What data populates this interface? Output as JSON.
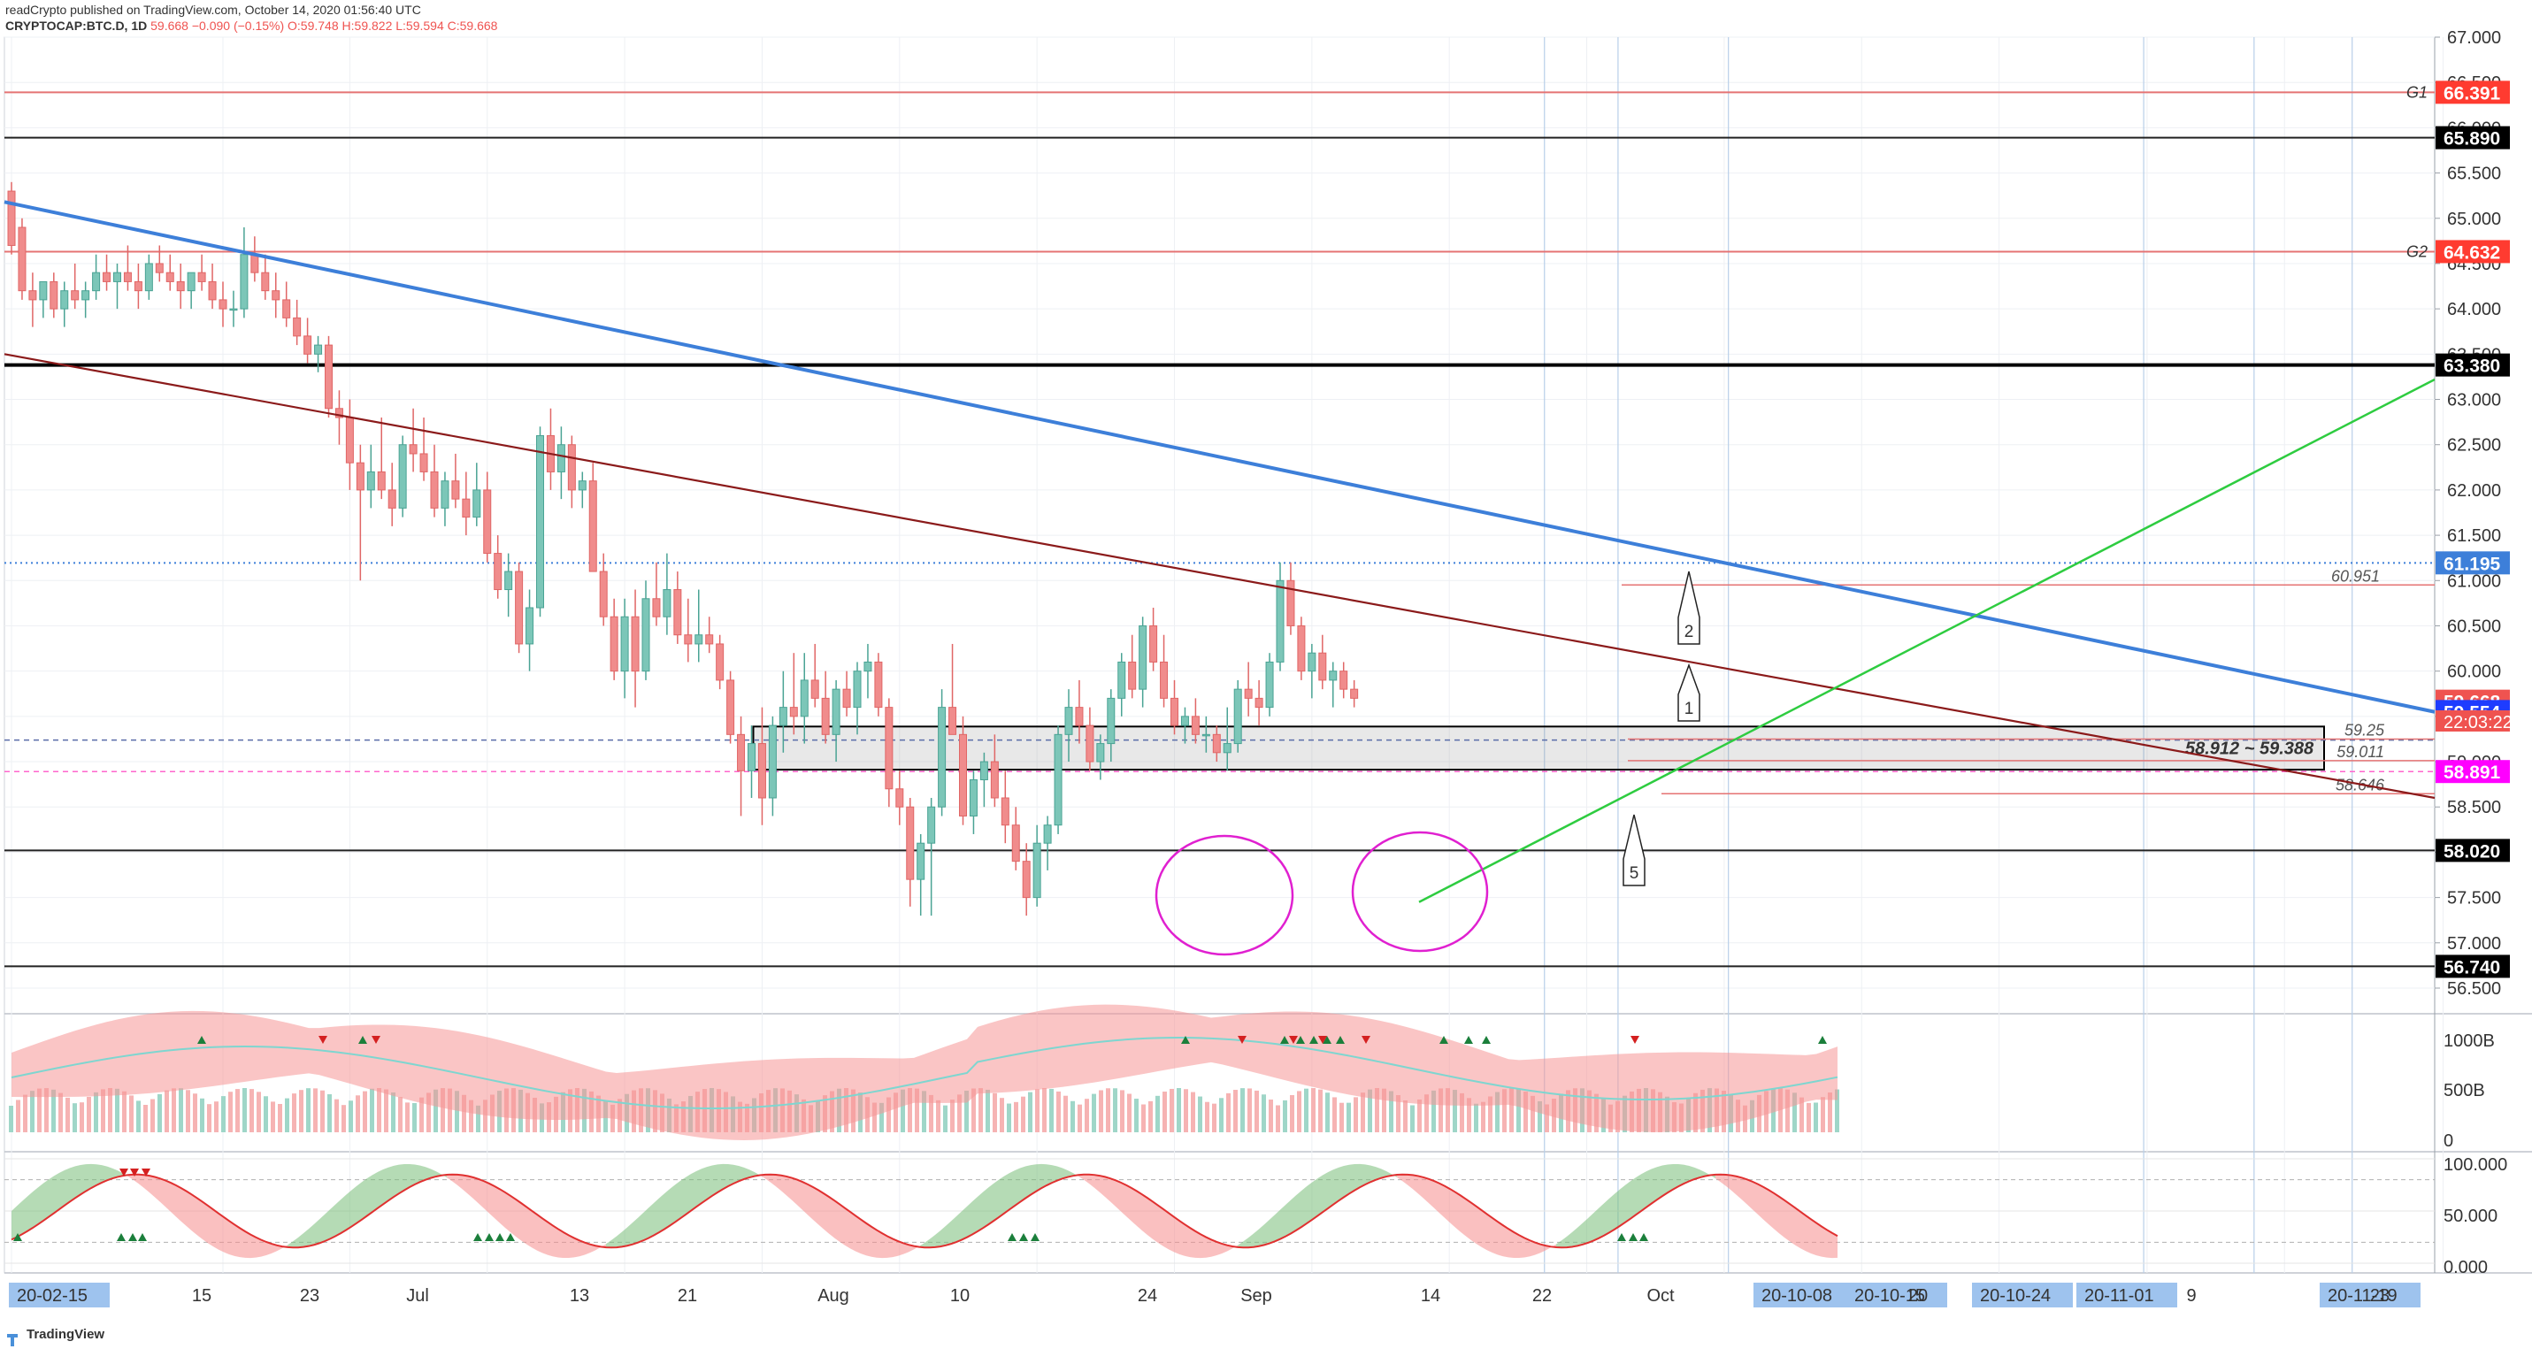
{
  "header": {
    "publish_line": "readCrypto published on TradingView.com, October 14, 2020 01:56:40 UTC",
    "symbol": "CRYPTOCAP:BTC.D, 1D",
    "last": "59.668",
    "change": "−0.090 (−0.15%)",
    "open": "O:59.748",
    "high": "H:59.822",
    "low": "L:59.594",
    "close": "C:59.668"
  },
  "footer": {
    "brand": "TradingView"
  },
  "colors": {
    "up": "#26a69a",
    "down": "#ef5350",
    "up_fill": "#a5d6a7",
    "down_fill": "#f5a3a3",
    "blue_trend": "#3d7fd9",
    "darkred_trend": "#8b1a1a",
    "green_trend": "#2ecc40",
    "magenta": "#e020d0",
    "hline_red": "#e57373",
    "grid": "#eef0f4",
    "axis_text": "#333333"
  },
  "chart_data": {
    "type": "candlestick",
    "price_axis": {
      "range": [
        56.5,
        67.0
      ],
      "ticks": [
        "67.000",
        "66.500",
        "66.000",
        "65.500",
        "65.000",
        "64.500",
        "64.000",
        "63.500",
        "63.000",
        "62.500",
        "62.000",
        "61.500",
        "61.000",
        "60.500",
        "60.000",
        "59.500",
        "59.000",
        "58.500",
        "58.000",
        "57.500",
        "57.000",
        "56.500"
      ]
    },
    "time_axis": {
      "ticks": [
        {
          "label": "20-02-15",
          "highlight": true
        },
        {
          "label": "15",
          "highlight": false
        },
        {
          "label": "23",
          "highlight": false
        },
        {
          "label": "Jul",
          "highlight": false
        },
        {
          "label": "13",
          "highlight": false
        },
        {
          "label": "21",
          "highlight": false
        },
        {
          "label": "Aug",
          "highlight": false
        },
        {
          "label": "10",
          "highlight": false
        },
        {
          "label": "24",
          "highlight": false
        },
        {
          "label": "Sep",
          "highlight": false
        },
        {
          "label": "14",
          "highlight": false
        },
        {
          "label": "22",
          "highlight": false
        },
        {
          "label": "Oct",
          "highlight": false
        },
        {
          "label": "20-10-08",
          "highlight": true
        },
        {
          "label": "20-10-15",
          "highlight": true
        },
        {
          "label": "20",
          "highlight": false
        },
        {
          "label": "20-10-24",
          "highlight": true
        },
        {
          "label": "20-11-01",
          "highlight": true
        },
        {
          "label": "9",
          "highlight": false
        },
        {
          "label": "20-11-19",
          "highlight": true
        },
        {
          "label": "23",
          "highlight": false
        }
      ]
    },
    "candles_ohlc": [
      [
        65.3,
        65.4,
        64.6,
        64.7
      ],
      [
        64.9,
        65.0,
        64.1,
        64.2
      ],
      [
        64.2,
        64.4,
        63.8,
        64.1
      ],
      [
        64.1,
        64.3,
        63.9,
        64.3
      ],
      [
        64.3,
        64.4,
        63.9,
        64.0
      ],
      [
        64.0,
        64.3,
        63.8,
        64.2
      ],
      [
        64.2,
        64.5,
        64.0,
        64.1
      ],
      [
        64.1,
        64.3,
        63.9,
        64.2
      ],
      [
        64.2,
        64.6,
        64.1,
        64.4
      ],
      [
        64.4,
        64.6,
        64.2,
        64.3
      ],
      [
        64.3,
        64.5,
        64.0,
        64.4
      ],
      [
        64.4,
        64.7,
        64.2,
        64.3
      ],
      [
        64.3,
        64.5,
        64.0,
        64.2
      ],
      [
        64.2,
        64.6,
        64.1,
        64.5
      ],
      [
        64.5,
        64.7,
        64.3,
        64.4
      ],
      [
        64.4,
        64.6,
        64.2,
        64.3
      ],
      [
        64.3,
        64.5,
        64.0,
        64.2
      ],
      [
        64.2,
        64.4,
        64.0,
        64.4
      ],
      [
        64.4,
        64.6,
        64.2,
        64.3
      ],
      [
        64.3,
        64.5,
        64.0,
        64.1
      ],
      [
        64.1,
        64.3,
        63.8,
        64.0
      ],
      [
        64.0,
        64.2,
        63.8,
        64.0
      ],
      [
        64.0,
        64.9,
        63.9,
        64.6
      ],
      [
        64.6,
        64.8,
        64.3,
        64.4
      ],
      [
        64.4,
        64.6,
        64.1,
        64.2
      ],
      [
        64.2,
        64.4,
        63.9,
        64.1
      ],
      [
        64.1,
        64.3,
        63.8,
        63.9
      ],
      [
        63.9,
        64.1,
        63.6,
        63.7
      ],
      [
        63.7,
        63.9,
        63.4,
        63.5
      ],
      [
        63.5,
        63.7,
        63.3,
        63.6
      ],
      [
        63.6,
        63.7,
        62.8,
        62.9
      ],
      [
        62.9,
        63.1,
        62.5,
        62.8
      ],
      [
        62.8,
        63.0,
        62.0,
        62.3
      ],
      [
        62.3,
        62.5,
        61.0,
        62.0
      ],
      [
        62.0,
        62.5,
        61.8,
        62.2
      ],
      [
        62.2,
        62.8,
        61.9,
        62.0
      ],
      [
        62.0,
        62.3,
        61.6,
        61.8
      ],
      [
        61.8,
        62.6,
        61.7,
        62.5
      ],
      [
        62.5,
        62.9,
        62.2,
        62.4
      ],
      [
        62.4,
        62.8,
        62.1,
        62.2
      ],
      [
        62.2,
        62.5,
        61.7,
        61.8
      ],
      [
        61.8,
        62.2,
        61.6,
        62.1
      ],
      [
        62.1,
        62.4,
        61.8,
        61.9
      ],
      [
        61.9,
        62.2,
        61.5,
        61.7
      ],
      [
        61.7,
        62.3,
        61.6,
        62.0
      ],
      [
        62.0,
        62.2,
        61.2,
        61.3
      ],
      [
        61.3,
        61.5,
        60.8,
        60.9
      ],
      [
        60.9,
        61.3,
        60.6,
        61.1
      ],
      [
        61.1,
        61.2,
        60.2,
        60.3
      ],
      [
        60.3,
        60.9,
        60.0,
        60.7
      ],
      [
        60.7,
        62.7,
        60.6,
        62.6
      ],
      [
        62.6,
        62.9,
        62.0,
        62.2
      ],
      [
        62.2,
        62.7,
        61.9,
        62.5
      ],
      [
        62.5,
        62.6,
        61.8,
        62.0
      ],
      [
        62.0,
        62.2,
        61.8,
        62.1
      ],
      [
        62.1,
        62.3,
        61.1,
        61.1
      ],
      [
        61.1,
        61.3,
        60.5,
        60.6
      ],
      [
        60.6,
        60.8,
        59.9,
        60.0
      ],
      [
        60.0,
        60.8,
        59.7,
        60.6
      ],
      [
        60.6,
        60.9,
        59.6,
        60.0
      ],
      [
        60.0,
        61.0,
        59.9,
        60.8
      ],
      [
        60.8,
        61.2,
        60.5,
        60.6
      ],
      [
        60.6,
        61.3,
        60.4,
        60.9
      ],
      [
        60.9,
        61.1,
        60.3,
        60.4
      ],
      [
        60.4,
        60.8,
        60.1,
        60.3
      ],
      [
        60.3,
        60.9,
        60.1,
        60.4
      ],
      [
        60.4,
        60.6,
        60.2,
        60.3
      ],
      [
        60.3,
        60.4,
        59.8,
        59.9
      ],
      [
        59.9,
        60.0,
        59.2,
        59.3
      ],
      [
        59.3,
        59.5,
        58.4,
        58.9
      ],
      [
        58.9,
        59.4,
        58.6,
        59.2
      ],
      [
        59.2,
        59.6,
        58.3,
        58.6
      ],
      [
        58.6,
        59.5,
        58.4,
        59.4
      ],
      [
        59.4,
        60.0,
        59.1,
        59.6
      ],
      [
        59.6,
        60.2,
        59.3,
        59.5
      ],
      [
        59.5,
        60.2,
        59.2,
        59.9
      ],
      [
        59.9,
        60.3,
        59.6,
        59.7
      ],
      [
        59.7,
        60.0,
        59.2,
        59.3
      ],
      [
        59.3,
        59.9,
        59.0,
        59.8
      ],
      [
        59.8,
        60.0,
        59.5,
        59.6
      ],
      [
        59.6,
        60.1,
        59.3,
        60.0
      ],
      [
        60.0,
        60.3,
        59.7,
        60.1
      ],
      [
        60.1,
        60.2,
        59.5,
        59.6
      ],
      [
        59.6,
        59.7,
        58.5,
        58.7
      ],
      [
        58.7,
        58.9,
        58.3,
        58.5
      ],
      [
        58.5,
        58.6,
        57.4,
        57.7
      ],
      [
        57.7,
        58.2,
        57.3,
        58.1
      ],
      [
        58.1,
        58.6,
        57.3,
        58.5
      ],
      [
        58.5,
        59.8,
        58.4,
        59.6
      ],
      [
        59.6,
        60.3,
        59.4,
        59.3
      ],
      [
        59.3,
        59.5,
        58.3,
        58.4
      ],
      [
        58.4,
        58.9,
        58.2,
        58.8
      ],
      [
        58.8,
        59.1,
        58.5,
        59.0
      ],
      [
        59.0,
        59.3,
        58.5,
        58.6
      ],
      [
        58.6,
        58.9,
        58.1,
        58.3
      ],
      [
        58.3,
        58.5,
        57.8,
        57.9
      ],
      [
        57.9,
        58.1,
        57.3,
        57.5
      ],
      [
        57.5,
        58.3,
        57.4,
        58.1
      ],
      [
        58.1,
        58.4,
        57.8,
        58.3
      ],
      [
        58.3,
        59.4,
        58.2,
        59.3
      ],
      [
        59.3,
        59.8,
        59.0,
        59.6
      ],
      [
        59.6,
        59.9,
        59.2,
        59.4
      ],
      [
        59.4,
        59.6,
        58.9,
        59.0
      ],
      [
        59.0,
        59.3,
        58.8,
        59.2
      ],
      [
        59.2,
        59.8,
        59.0,
        59.7
      ],
      [
        59.7,
        60.2,
        59.5,
        60.1
      ],
      [
        60.1,
        60.4,
        59.7,
        59.8
      ],
      [
        59.8,
        60.6,
        59.6,
        60.5
      ],
      [
        60.5,
        60.7,
        60.0,
        60.1
      ],
      [
        60.1,
        60.4,
        59.6,
        59.7
      ],
      [
        59.7,
        59.9,
        59.3,
        59.4
      ],
      [
        59.4,
        59.6,
        59.2,
        59.5
      ],
      [
        59.5,
        59.7,
        59.2,
        59.3
      ],
      [
        59.3,
        59.5,
        59.1,
        59.3
      ],
      [
        59.3,
        59.4,
        59.0,
        59.1
      ],
      [
        59.1,
        59.6,
        58.9,
        59.2
      ],
      [
        59.2,
        59.9,
        59.1,
        59.8
      ],
      [
        59.8,
        60.1,
        59.5,
        59.7
      ],
      [
        59.7,
        59.9,
        59.4,
        59.6
      ],
      [
        59.6,
        60.2,
        59.5,
        60.1
      ],
      [
        60.1,
        61.2,
        60.0,
        61.0
      ],
      [
        61.0,
        61.2,
        60.4,
        60.5
      ],
      [
        60.5,
        60.6,
        59.9,
        60.0
      ],
      [
        60.0,
        60.3,
        59.7,
        60.2
      ],
      [
        60.2,
        60.4,
        59.8,
        59.9
      ],
      [
        59.9,
        60.1,
        59.6,
        60.0
      ],
      [
        60.0,
        60.1,
        59.7,
        59.8
      ],
      [
        59.8,
        59.9,
        59.6,
        59.7
      ]
    ],
    "horizontal_levels": [
      {
        "value": 66.391,
        "label": "66.391",
        "tag": "G1",
        "style": "red",
        "bg": "#ff3b30",
        "fg": "#ffffff"
      },
      {
        "value": 65.89,
        "label": "65.890",
        "style": "black",
        "bg": "#000000",
        "fg": "#ffffff"
      },
      {
        "value": 64.632,
        "label": "64.632",
        "tag": "G2",
        "style": "red",
        "bg": "#ff3b30",
        "fg": "#ffffff"
      },
      {
        "value": 63.38,
        "label": "63.380",
        "style": "black-thick",
        "bg": "#000000",
        "fg": "#ffffff"
      },
      {
        "value": 61.195,
        "label": "61.195",
        "style": "blue-dotted",
        "bg": "#3d7fd9",
        "fg": "#ffffff"
      },
      {
        "value": 59.668,
        "label": "59.668",
        "style": "price",
        "bg": "#ef5350",
        "fg": "#ffffff"
      },
      {
        "value": 59.554,
        "label": "59.554",
        "style": "none",
        "bg": "#1e3cff",
        "fg": "#ffffff"
      },
      {
        "value": 58.891,
        "label": "58.891",
        "style": "magenta-dashed",
        "bg": "#ff00ff",
        "fg": "#ffffff"
      },
      {
        "value": 58.02,
        "label": "58.020",
        "style": "black",
        "bg": "#000000",
        "fg": "#ffffff"
      },
      {
        "value": 56.74,
        "label": "56.740",
        "style": "black",
        "bg": "#000000",
        "fg": "#ffffff"
      }
    ],
    "countdown": {
      "label": "22:03:22",
      "value": 59.45
    },
    "short_levels": [
      {
        "value": 60.951,
        "label": "60.951",
        "from_bar": 118
      },
      {
        "value": 59.25,
        "label": "59.25",
        "from_bar": 120
      },
      {
        "value": 59.011,
        "label": "59.011",
        "from_bar": 120
      },
      {
        "value": 58.646,
        "label": "58.646",
        "from_bar": 120
      }
    ],
    "box": {
      "top": 59.388,
      "bottom": 58.912,
      "from_bar": 70,
      "to_bar": 164,
      "label": "58.912 ~ 59.388"
    },
    "trendlines": [
      {
        "name": "blue",
        "from": [
          0,
          65.18
        ],
        "to": [
          175,
          59.55
        ]
      },
      {
        "name": "darkred",
        "from": [
          0,
          63.5
        ],
        "to": [
          175,
          58.6
        ]
      },
      {
        "name": "green",
        "from": [
          101,
          57.45
        ],
        "to": [
          175,
          63.22
        ]
      }
    ],
    "callouts": [
      {
        "label": "2",
        "bar": 120,
        "value": 61.18
      },
      {
        "label": "1",
        "bar": 120,
        "value": 60.18
      },
      {
        "label": "5",
        "bar": 116,
        "value": 58.6
      }
    ],
    "vertical_lines_bars": [
      125,
      131,
      140,
      148,
      157,
      165
    ],
    "cloud_axis": {
      "ticks": [
        "1000B",
        "500B",
        "0"
      ]
    },
    "osc_axis": {
      "ticks": [
        "100.000",
        "50.000",
        "0.000"
      ]
    }
  }
}
